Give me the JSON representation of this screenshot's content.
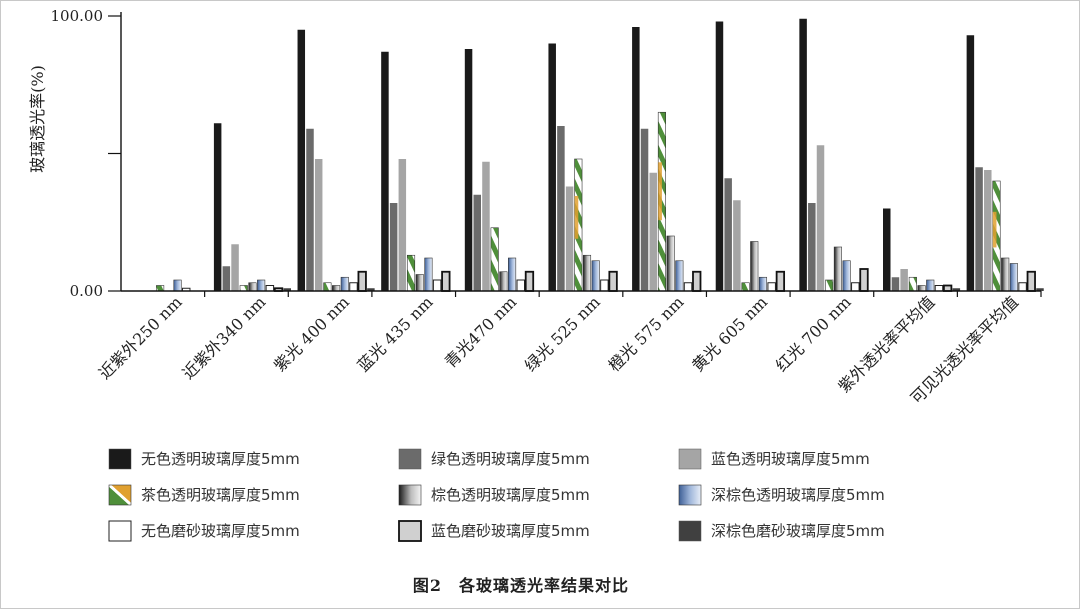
{
  "chart_data": {
    "type": "bar",
    "title": "",
    "caption": "图2　各玻璃透光率结果对比",
    "ylabel": "玻璃透光率(%)",
    "xlabel": "",
    "ylim": [
      0,
      100
    ],
    "yticks": [
      "0.00",
      "100.00"
    ],
    "categories": [
      "近紫外250 nm",
      "近紫外340 nm",
      "紫光 400 nm",
      "蓝光 435 nm",
      "青光470 nm",
      "绿光 525 nm",
      "橙光 575 nm",
      "黄光 605 nm",
      "红光 700 nm",
      "紫外透光率平均值",
      "可见光透光率平均值"
    ],
    "series": [
      {
        "name": "无色透明玻璃厚度5mm",
        "color": "#1a1a1a",
        "style": "solid",
        "values": [
          0,
          61,
          95,
          87,
          88,
          90,
          96,
          98,
          99,
          30,
          93
        ]
      },
      {
        "name": "绿色透明玻璃厚度5mm",
        "color": "#6b6b6b",
        "style": "solid",
        "values": [
          0,
          9,
          59,
          32,
          35,
          60,
          59,
          41,
          32,
          5,
          45
        ]
      },
      {
        "name": "蓝色透明玻璃厚度5mm",
        "color": "#a5a5a5",
        "style": "solid",
        "values": [
          0,
          17,
          48,
          48,
          47,
          38,
          43,
          33,
          53,
          8,
          44
        ]
      },
      {
        "name": "茶色透明玻璃厚度5mm",
        "color": "#4f8f3a",
        "style": "tea",
        "values": [
          2,
          2,
          3,
          13,
          23,
          48,
          65,
          3,
          4,
          5,
          40
        ]
      },
      {
        "name": "棕色透明玻璃厚度5mm",
        "color": "#888888",
        "style": "brown",
        "values": [
          0,
          3,
          2,
          6,
          7,
          13,
          20,
          18,
          16,
          2,
          12
        ]
      },
      {
        "name": "深棕色透明玻璃厚度5mm",
        "color": "#7f9ac4",
        "style": "navy",
        "values": [
          4,
          4,
          5,
          12,
          12,
          11,
          11,
          5,
          11,
          4,
          10
        ]
      },
      {
        "name": "无色磨砂玻璃厚度5mm",
        "color": "#ffffff",
        "style": "outline",
        "values": [
          1,
          2,
          3,
          4,
          4,
          4,
          3,
          3,
          3,
          2,
          3
        ]
      },
      {
        "name": "蓝色磨砂玻璃厚度5mm",
        "color": "#d0d0d0",
        "style": "outline-bold",
        "values": [
          0,
          1,
          7,
          7,
          7,
          7,
          7,
          7,
          8,
          2,
          7
        ]
      },
      {
        "name": "深棕色磨砂玻璃厚度5mm",
        "color": "#404040",
        "style": "solid",
        "values": [
          0,
          1,
          1,
          0,
          0,
          0,
          0,
          0,
          0,
          1,
          1
        ]
      }
    ],
    "legend_position": "bottom",
    "grid": false
  },
  "colors": {
    "axis": "#111111",
    "green_pattern": "#4f8f3a",
    "orange_pattern": "#e0a030"
  }
}
